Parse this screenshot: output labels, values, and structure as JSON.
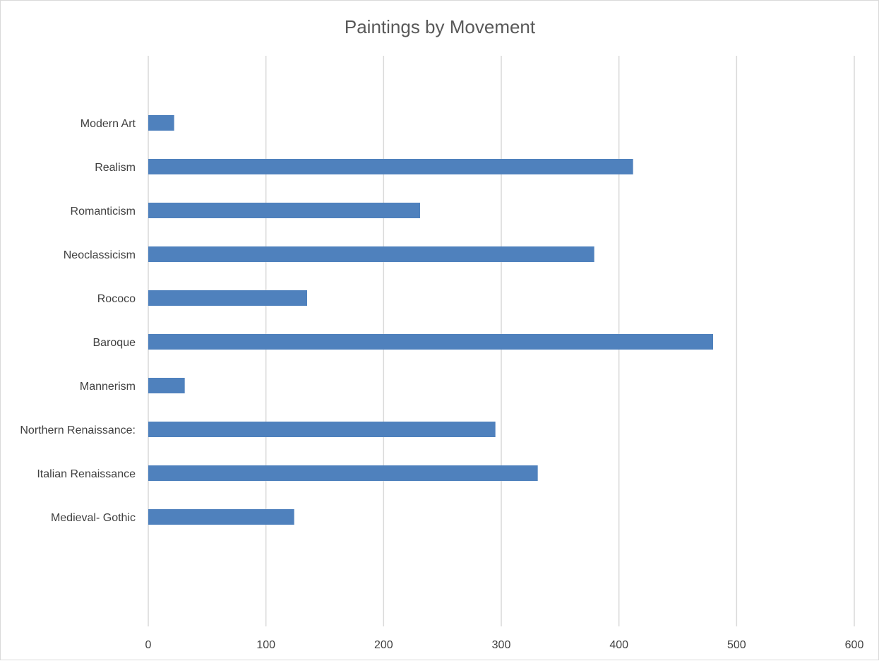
{
  "chart_data": {
    "type": "bar",
    "orientation": "horizontal",
    "title": "Paintings by Movement",
    "xlabel": "",
    "ylabel": "",
    "categories": [
      "Medieval- Gothic",
      "Italian Renaissance",
      "Northern Renaissance:",
      "Mannerism",
      "Baroque",
      "Rococo",
      "Neoclassicism",
      "Romanticism",
      "Realism",
      "Modern Art"
    ],
    "values": [
      124,
      331,
      295,
      31,
      480,
      135,
      379,
      231,
      412,
      22
    ],
    "xlim": [
      0,
      600
    ],
    "xticks": [
      0,
      100,
      200,
      300,
      400,
      500,
      600
    ],
    "grid": true,
    "legend": "none",
    "bar_color": "#4f81bd"
  }
}
